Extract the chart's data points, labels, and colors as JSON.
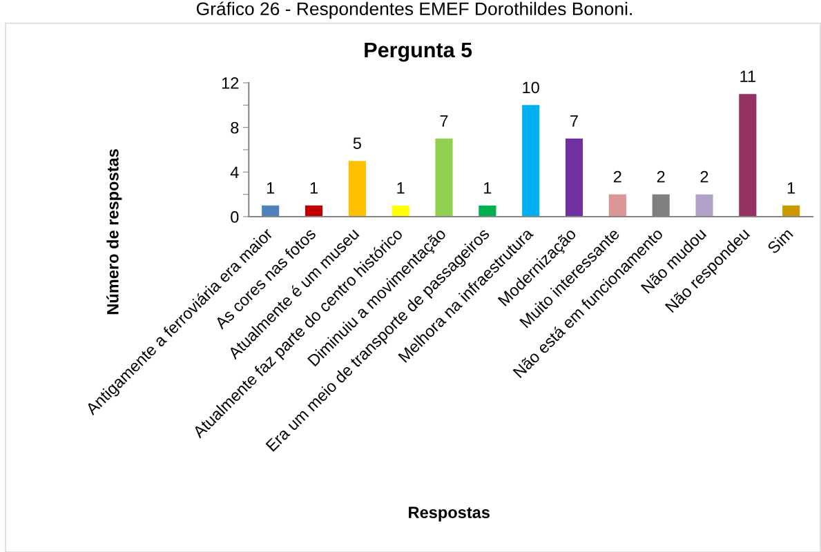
{
  "chart_data": {
    "type": "bar",
    "title": "Pergunta 5",
    "xlabel": "Respostas",
    "ylabel": "Número de respostas",
    "annotations": [
      "Gráfico 26 - Respondentes EMEF Dorothildes Bononi."
    ],
    "categories": [
      "Antigamente a ferroviária era maior",
      "As cores nas fotos",
      "Atualmente é um museu",
      "Atualmente faz parte do centro histórico",
      "Diminuiu a movimentação",
      "Era um meio de transporte de passageiros",
      "Melhora na infraestrutura",
      "Modernização",
      "Muito interessante",
      "Não está em funcionamento",
      "Não mudou",
      "Não respondeu",
      "Sim"
    ],
    "values": [
      1,
      1,
      5,
      1,
      7,
      1,
      10,
      7,
      2,
      2,
      2,
      11,
      1
    ],
    "colors": [
      "#4f81bd",
      "#c00000",
      "#ffc000",
      "#ffff00",
      "#92d050",
      "#00b050",
      "#00b0f0",
      "#7030a0",
      "#d99694",
      "#808080",
      "#b3a2c7",
      "#953163",
      "#cc9900"
    ],
    "ylim": [
      0,
      12
    ],
    "yticks": [
      0,
      {
        "value": 2,
        "label": null
      },
      4,
      {
        "value": 6,
        "label": null
      },
      8,
      {
        "value": 10,
        "label": null
      },
      12
    ],
    "data_labels": true
  }
}
